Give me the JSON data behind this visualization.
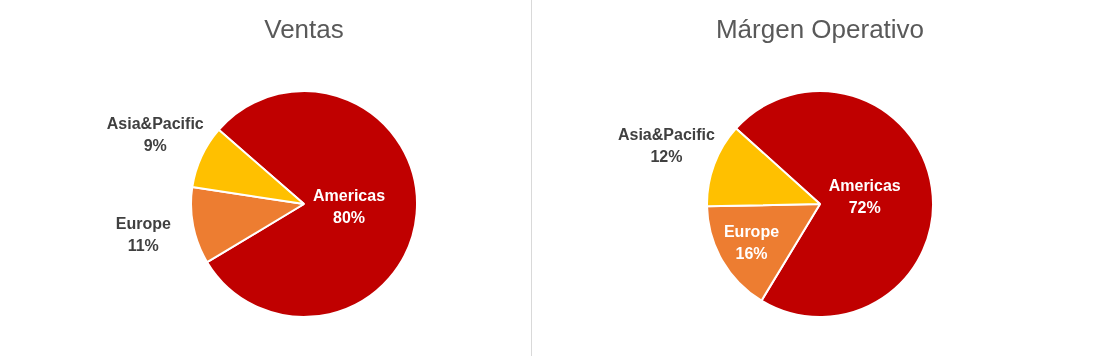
{
  "chart_data": [
    {
      "type": "pie",
      "title": "Ventas",
      "categories": [
        "Americas",
        "Europe",
        "Asia&Pacific"
      ],
      "values": [
        80,
        11,
        9
      ],
      "value_labels": [
        "80%",
        "11%",
        "9%"
      ],
      "colors": [
        "#c00000",
        "#ed7d31",
        "#ffc000"
      ],
      "legend": false
    },
    {
      "type": "pie",
      "title": "Márgen Operativo",
      "categories": [
        "Americas",
        "Europe",
        "Asia&Pacific"
      ],
      "values": [
        72,
        16,
        12
      ],
      "value_labels": [
        "72%",
        "16%",
        "12%"
      ],
      "colors": [
        "#c00000",
        "#ed7d31",
        "#ffc000"
      ],
      "legend": false
    }
  ]
}
